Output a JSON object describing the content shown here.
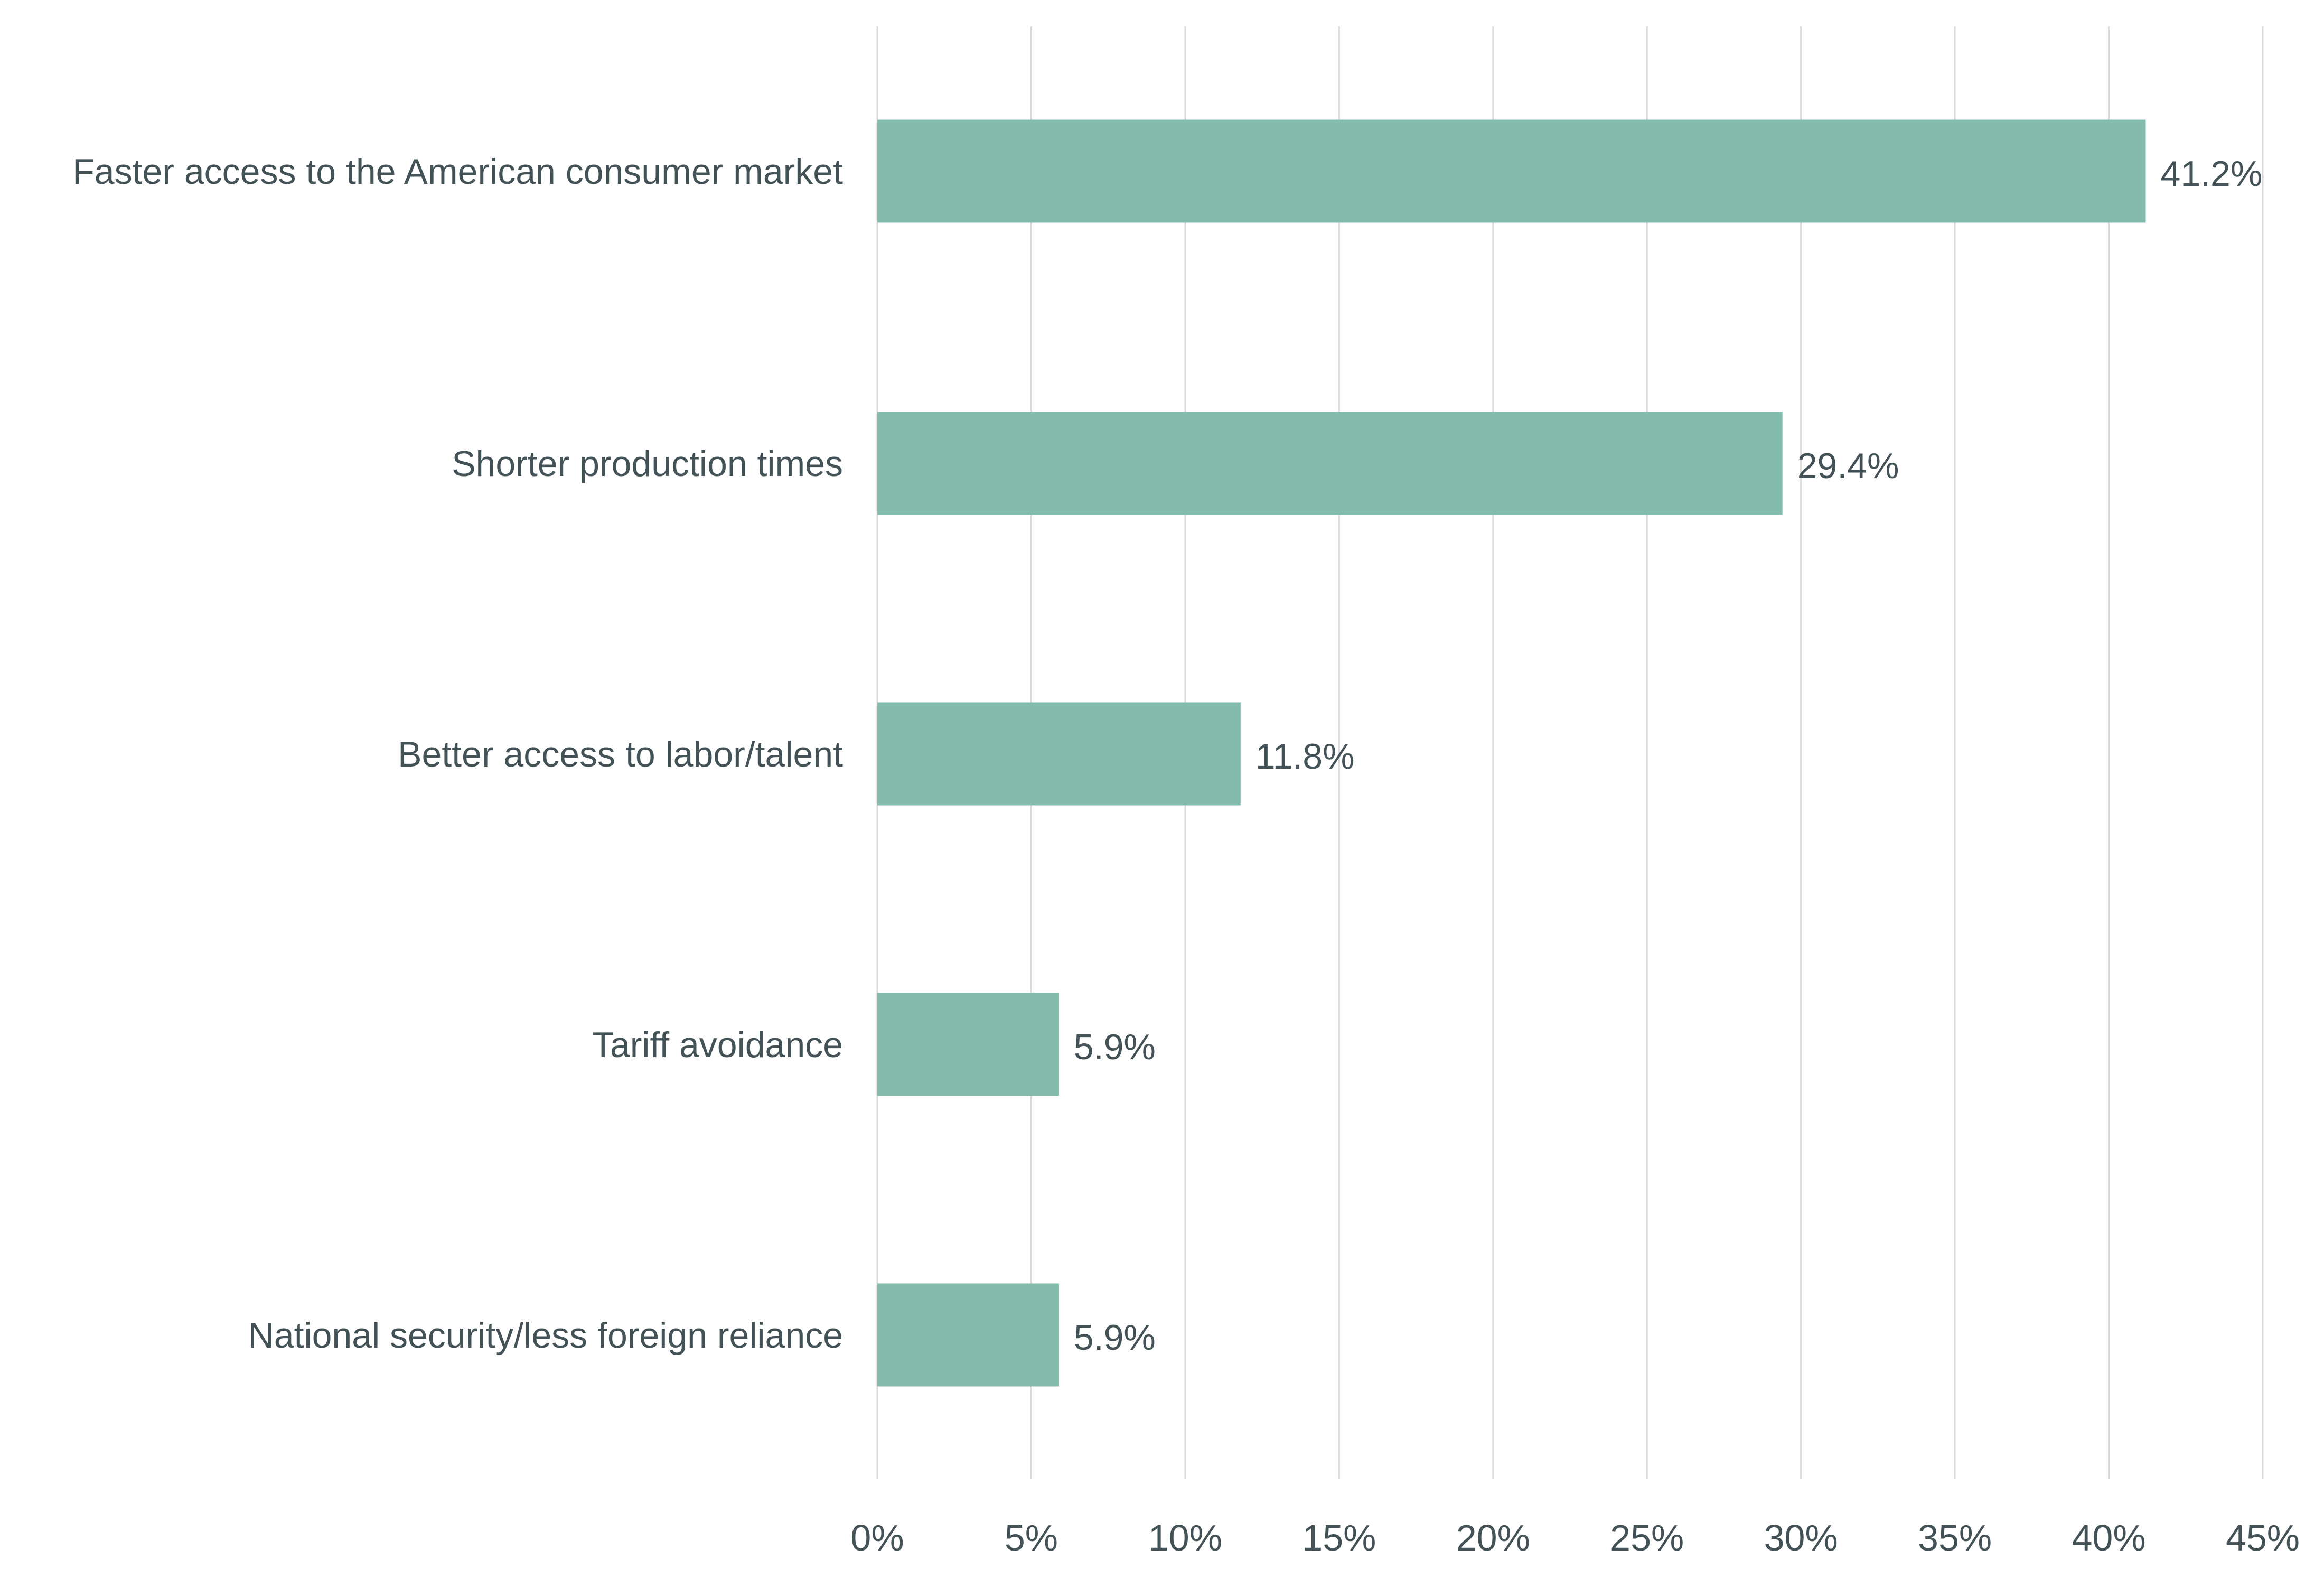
{
  "chart_data": {
    "type": "bar",
    "orientation": "horizontal",
    "categories": [
      "Faster access to the American consumer market",
      "Shorter production times",
      "Better access to labor/talent",
      "Tariff avoidance",
      "National security/less foreign reliance"
    ],
    "values": [
      41.2,
      29.4,
      11.8,
      5.9,
      5.9
    ],
    "data_labels": [
      "41.2%",
      "29.4%",
      "11.8%",
      "5.9%",
      "5.9%"
    ],
    "xlim": [
      0,
      45
    ],
    "x_ticks": [
      "0%",
      "5%",
      "10%",
      "15%",
      "20%",
      "25%",
      "30%",
      "35%",
      "40%",
      "45%"
    ],
    "grid": "vertical",
    "title": "",
    "xlabel": "",
    "ylabel": "",
    "colors": {
      "bar": "#83bbad",
      "text": "#435257",
      "grid": "#d9d9d9"
    }
  }
}
